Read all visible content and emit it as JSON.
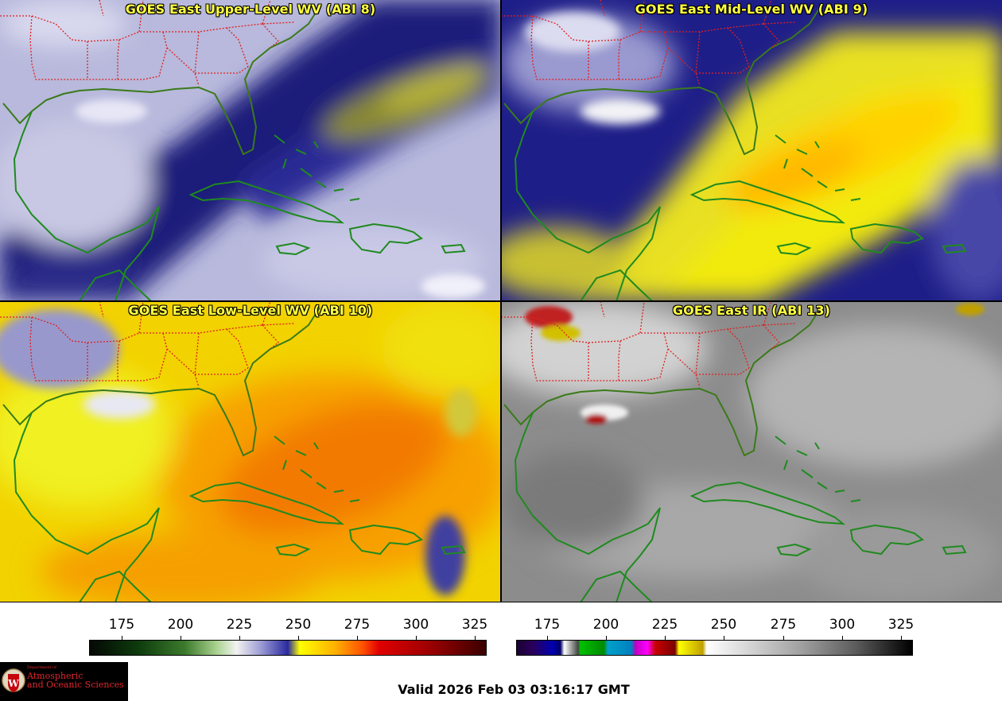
{
  "panels": [
    {
      "title": "GOES East Upper-Level WV (ABI 8)",
      "palette": "upper"
    },
    {
      "title": "GOES East Mid-Level WV (ABI 9)",
      "palette": "mid"
    },
    {
      "title": "GOES East Low-Level WV (ABI 10)",
      "palette": "low"
    },
    {
      "title": "GOES East IR (ABI 13)",
      "palette": "ir"
    }
  ],
  "colorbars": {
    "water_vapor": {
      "ticks": [
        "175",
        "200",
        "225",
        "250",
        "275",
        "300",
        "325"
      ],
      "min": 161,
      "max": 330
    },
    "infrared": {
      "ticks": [
        "175",
        "200",
        "225",
        "250",
        "275",
        "300",
        "325"
      ],
      "min": 162,
      "max": 330
    }
  },
  "colors": {
    "coastline": "#1f8a1f",
    "state_borders": "#e02020",
    "title_text": "#ffff40"
  },
  "footer": {
    "logo": {
      "line1": "Department of",
      "line2": "Atmospheric",
      "line3": "and Oceanic Sciences"
    },
    "valid_time": "Valid 2026 Feb 03 03:16:17 GMT"
  }
}
